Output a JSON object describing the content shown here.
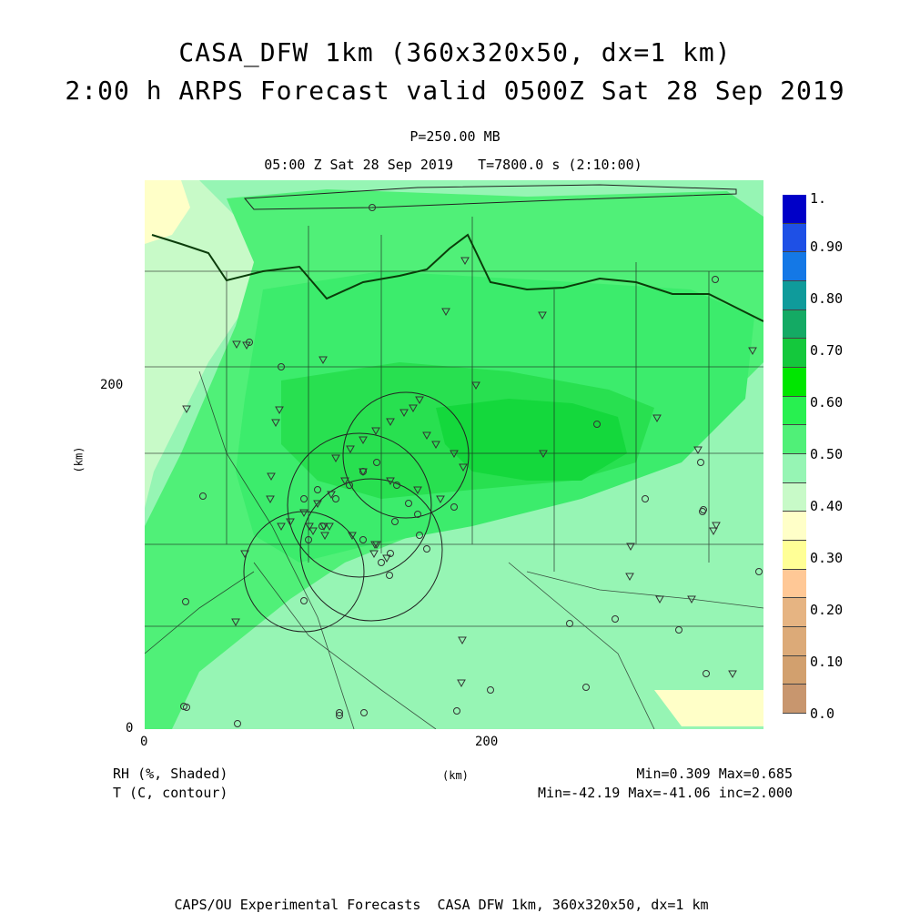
{
  "title": {
    "line1": "CASA_DFW 1km (360x320x50, dx=1 km)",
    "line2": "2:00 h ARPS Forecast valid 0500Z Sat 28 Sep 2019"
  },
  "subtitle": {
    "level": "P=250.00 MB",
    "time": "05:00 Z Sat 28 Sep 2019   T=7800.0 s (2:10:00)"
  },
  "axes": {
    "x_label": "(km)",
    "y_label": "(km)",
    "x_ticks": [
      {
        "value": 0,
        "label": "0"
      },
      {
        "value": 200,
        "label": "200"
      }
    ],
    "y_ticks": [
      {
        "value": 0,
        "label": "0"
      },
      {
        "value": 200,
        "label": "200"
      }
    ],
    "x_range": [
      0,
      360
    ],
    "y_range": [
      0,
      320
    ]
  },
  "legend": {
    "labels": [
      "1.",
      "0.90",
      "0.80",
      "0.70",
      "0.60",
      "0.50",
      "0.40",
      "0.30",
      "0.20",
      "0.10",
      "0.0"
    ],
    "colors": [
      "#0000c8",
      "#1e50e6",
      "#1478e6",
      "#0f9b9b",
      "#14aa64",
      "#14c83c",
      "#00e600",
      "#28f050",
      "#50f078",
      "#96f5b4",
      "#c8fac8",
      "#ffffc8",
      "#ffff96",
      "#ffc896",
      "#e6b482",
      "#dcaa78",
      "#d2a06e",
      "#c8966e"
    ]
  },
  "footer": {
    "field1": "RH (%, Shaded)",
    "field2": "T (C, contour)",
    "units": "(km)",
    "stats1": "Min=0.309 Max=0.685",
    "stats2": "Min=-42.19 Max=-41.06 inc=2.000",
    "credit": "CAPS/OU Experimental Forecasts  CASA DFW 1km, 360x320x50, dx=1 km"
  },
  "map": {
    "shading_colors": {
      "c030": "#ffffc8",
      "c040": "#c8fac8",
      "c045": "#96f5b4",
      "c050": "#50f078",
      "c055": "#3cec6c",
      "c060": "#28e050",
      "c065": "#14d83c"
    },
    "radar_circles_icon": "range-ring-icon",
    "station_marker_icons": [
      "triangle-station-icon",
      "circle-station-icon"
    ]
  }
}
